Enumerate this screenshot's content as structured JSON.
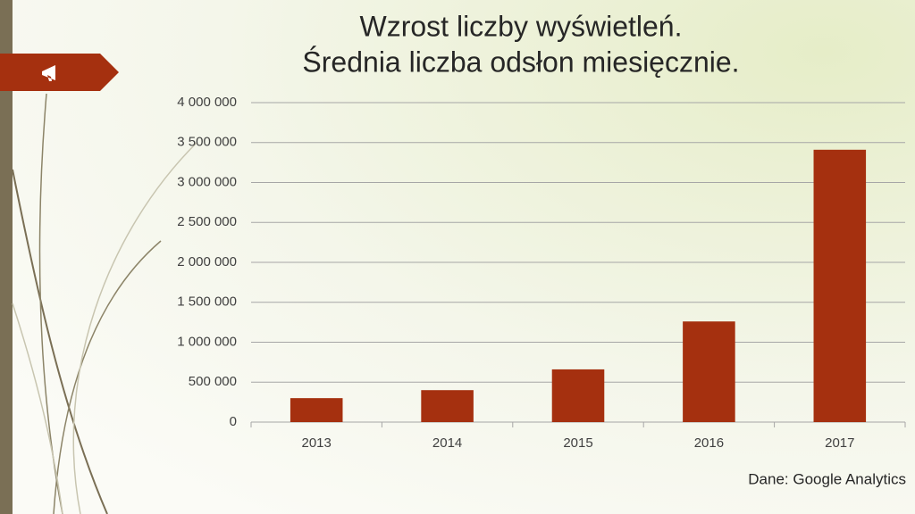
{
  "chart_data": {
    "type": "bar",
    "title": "Wzrost liczby wyświetleń.",
    "subtitle": "Średnia liczba odsłon miesięcznie.",
    "source": "Dane: Google Analytics",
    "categories": [
      "2013",
      "2014",
      "2015",
      "2016",
      "2017"
    ],
    "values": [
      300000,
      400000,
      660000,
      1260000,
      3410000
    ],
    "color": "#a5300f",
    "ylim": [
      0,
      4000000
    ],
    "yticks": [
      0,
      {
        "value": 500000,
        "label": "500 000"
      },
      {
        "value": 1000000,
        "label": "1 000 000"
      },
      {
        "value": 1500000,
        "label": "1 500 000"
      },
      {
        "value": 2000000,
        "label": "2 000 000"
      },
      {
        "value": 2500000,
        "label": "2 500 000"
      },
      {
        "value": 3000000,
        "label": "3 000 000"
      },
      {
        "value": 3500000,
        "label": "3 500 000"
      },
      {
        "value": 4000000,
        "label": "4 000 000"
      }
    ],
    "grid": true
  }
}
